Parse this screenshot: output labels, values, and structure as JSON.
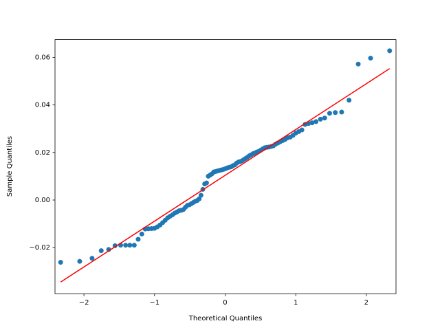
{
  "chart_data": {
    "type": "scatter",
    "xlabel": "Theoretical Quantiles",
    "ylabel": "Sample Quantiles",
    "points": {
      "color": "#1f77b4",
      "x": [
        -2.33,
        -2.06,
        -1.885,
        -1.755,
        -1.65,
        -1.56,
        -1.48,
        -1.41,
        -1.35,
        -1.287,
        -1.232,
        -1.18,
        -1.132,
        -1.087,
        -1.043,
        -1.001,
        -0.961,
        -0.922,
        -0.885,
        -0.849,
        -0.814,
        -0.779,
        -0.746,
        -0.714,
        -0.682,
        -0.651,
        -0.621,
        -0.591,
        -0.562,
        -0.533,
        -0.505,
        -0.477,
        -0.449,
        -0.422,
        -0.395,
        -0.368,
        -0.342,
        -0.316,
        -0.29,
        -0.264,
        -0.239,
        -0.213,
        -0.188,
        -0.162,
        -0.137,
        -0.112,
        -0.087,
        -0.062,
        -0.037,
        -0.012,
        0.012,
        0.037,
        0.062,
        0.087,
        0.112,
        0.137,
        0.162,
        0.188,
        0.213,
        0.239,
        0.264,
        0.29,
        0.316,
        0.342,
        0.368,
        0.395,
        0.422,
        0.449,
        0.477,
        0.505,
        0.533,
        0.562,
        0.591,
        0.621,
        0.651,
        0.682,
        0.714,
        0.746,
        0.779,
        0.814,
        0.849,
        0.885,
        0.922,
        0.961,
        1.001,
        1.043,
        1.087,
        1.132,
        1.18,
        1.232,
        1.287,
        1.35,
        1.41,
        1.48,
        1.56,
        1.65,
        1.755,
        1.885,
        2.06,
        2.33
      ],
      "y": [
        -0.0262,
        -0.0258,
        -0.0245,
        -0.0213,
        -0.0208,
        -0.0192,
        -0.019,
        -0.019,
        -0.019,
        -0.019,
        -0.0165,
        -0.0143,
        -0.0122,
        -0.0121,
        -0.012,
        -0.0119,
        -0.0113,
        -0.0105,
        -0.0095,
        -0.0085,
        -0.0075,
        -0.0068,
        -0.0062,
        -0.0055,
        -0.005,
        -0.0045,
        -0.0043,
        -0.004,
        -0.003,
        -0.0022,
        -0.002,
        -0.0015,
        -0.001,
        -0.0005,
        -0.0002,
        0.0005,
        0.002,
        0.0045,
        0.0068,
        0.0072,
        0.01,
        0.0105,
        0.011,
        0.0118,
        0.012,
        0.0122,
        0.0124,
        0.0126,
        0.0128,
        0.013,
        0.0133,
        0.0136,
        0.0138,
        0.014,
        0.0145,
        0.0148,
        0.0155,
        0.016,
        0.0162,
        0.0165,
        0.017,
        0.0175,
        0.018,
        0.0186,
        0.019,
        0.0195,
        0.0198,
        0.0202,
        0.0205,
        0.021,
        0.0215,
        0.022,
        0.0222,
        0.0223,
        0.0225,
        0.0228,
        0.0235,
        0.024,
        0.0245,
        0.025,
        0.0255,
        0.0262,
        0.0265,
        0.0272,
        0.0282,
        0.0288,
        0.0295,
        0.0318,
        0.0322,
        0.0325,
        0.033,
        0.034,
        0.0345,
        0.0365,
        0.0368,
        0.037,
        0.042,
        0.0572,
        0.0597,
        0.0628
      ]
    },
    "line": {
      "color": "#ff0000",
      "x": [
        -2.33,
        2.33
      ],
      "y": [
        -0.0345,
        0.0553
      ]
    },
    "xlim": [
      -2.41,
      2.42
    ],
    "ylim": [
      -0.0394,
      0.0675
    ],
    "xticks": [
      {
        "value": -2,
        "label": "−2"
      },
      {
        "value": -1,
        "label": "−1"
      },
      0,
      1,
      2
    ],
    "yticks": [
      {
        "value": -0.02,
        "label": "−0.02"
      },
      {
        "value": 0,
        "label": "0.00"
      },
      {
        "value": 0.02,
        "label": "0.02"
      },
      {
        "value": 0.04,
        "label": "0.04"
      },
      {
        "value": 0.06,
        "label": "0.06"
      }
    ],
    "grid": false
  }
}
